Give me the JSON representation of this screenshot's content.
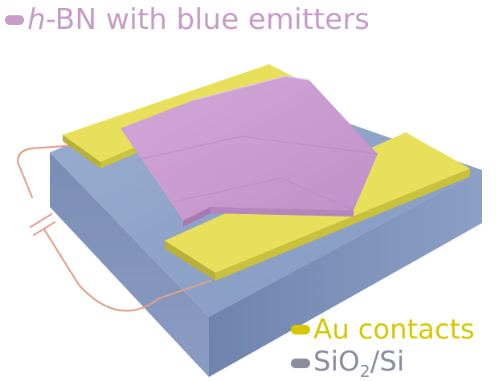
{
  "title": {
    "italic": "h",
    "rest": "-BN with blue emitters",
    "color": "#c79bc8"
  },
  "legend": {
    "gold": {
      "label": "Au contacts",
      "color": "#d6c700"
    },
    "substrate": {
      "label_main": "SiO",
      "label_sub": "2",
      "label_tail": "/Si",
      "color": "#8a8d9c"
    }
  },
  "colors": {
    "substrate_top": "#8fa3c6",
    "substrate_side": "#7185ad",
    "gold": "#e7e056",
    "hbn": "#cb9ed2",
    "wire": "#e0a08a"
  }
}
